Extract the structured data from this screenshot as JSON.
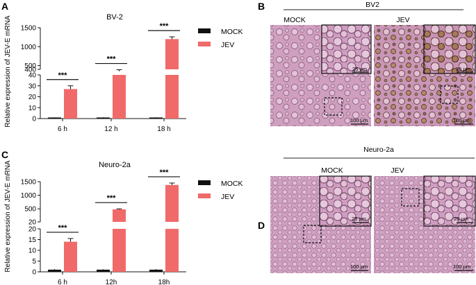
{
  "panels": {
    "A": {
      "letter": "A",
      "title": "BV-2",
      "ylabel": "Relative expression of JEV-E mRNA",
      "legend": [
        {
          "label": "MOCK",
          "color": "#111111"
        },
        {
          "label": "JEV",
          "color": "#f06a6a"
        }
      ],
      "significance": [
        "***",
        "***",
        "***"
      ]
    },
    "B": {
      "letter": "B",
      "title": "BV2",
      "left_label": "MOCK",
      "right_label": "JEV",
      "inset_scale": "25 μm",
      "main_scale": "100 μm"
    },
    "C": {
      "letter": "C",
      "title": "Neuro-2a",
      "ylabel": "Relative expression of JEV-E mRNA",
      "legend": [
        {
          "label": "MOCK",
          "color": "#111111"
        },
        {
          "label": "JEV",
          "color": "#f06a6a"
        }
      ],
      "significance": [
        "***",
        "***",
        "***"
      ]
    },
    "D": {
      "letter": "D",
      "title": "Neuro-2a",
      "left_label": "MOCK",
      "right_label": "JEV",
      "inset_scale": "25 μm",
      "main_scale": "100 μm"
    }
  },
  "colors": {
    "mock": "#111111",
    "jev": "#f06a6a",
    "cell_bg": "#d6a3c6"
  },
  "chart_data": [
    {
      "type": "bar",
      "title": "BV-2",
      "ylabel": "Relative expression of JEV-E mRNA",
      "categories": [
        "6 h",
        "12 h",
        "18 h"
      ],
      "series": [
        {
          "name": "MOCK",
          "values": [
            1,
            1,
            1
          ],
          "errors": [
            0.3,
            0.3,
            0.3
          ]
        },
        {
          "name": "JEV",
          "values": [
            27,
            350,
            1200
          ],
          "errors": [
            3,
            40,
            60
          ]
        }
      ],
      "y_axis_broken": true,
      "y_lower_segment": {
        "ticks": [
          0,
          10,
          20,
          30,
          40
        ],
        "range": [
          0,
          40
        ]
      },
      "y_upper_segment": {
        "ticks": [
          400,
          500,
          1000,
          1500
        ],
        "range": [
          400,
          1500
        ]
      },
      "legend_position": "right"
    },
    {
      "type": "bar",
      "title": "Neuro-2a",
      "ylabel": "Relative expression of JEV-E mRNA",
      "categories": [
        "6 h",
        "12h",
        "18h"
      ],
      "series": [
        {
          "name": "MOCK",
          "values": [
            1,
            1,
            1
          ],
          "errors": [
            0.3,
            0.2,
            0.3
          ]
        },
        {
          "name": "JEV",
          "values": [
            14,
            480,
            1380
          ],
          "errors": [
            1.5,
            20,
            70
          ]
        }
      ],
      "y_axis_broken": true,
      "y_lower_segment": {
        "ticks": [
          0,
          5,
          10,
          15,
          20
        ],
        "range": [
          0,
          20
        ]
      },
      "y_upper_segment": {
        "ticks": [
          20,
          500,
          1000,
          1500
        ],
        "range": [
          20,
          1500
        ]
      },
      "legend_position": "right"
    }
  ]
}
